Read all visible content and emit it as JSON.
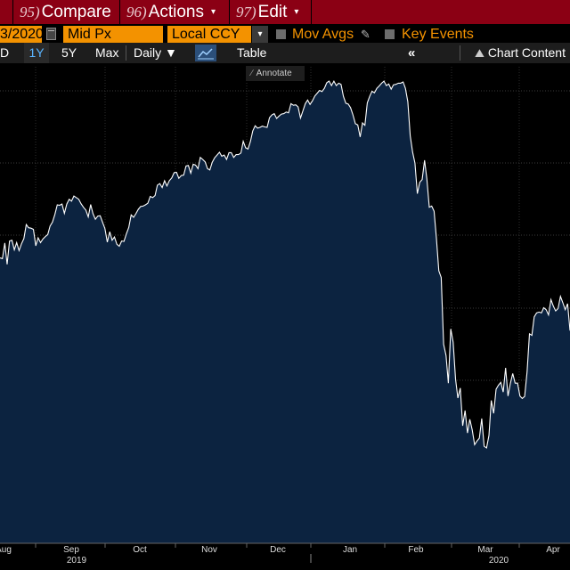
{
  "menu": {
    "compare": {
      "num": "95)",
      "label": "Compare"
    },
    "actions": {
      "num": "96)",
      "label": "Actions"
    },
    "edit": {
      "num": "97)",
      "label": "Edit"
    },
    "arrow": "▾"
  },
  "inputs": {
    "end_date": "3/2020",
    "price_field": "Mid Px",
    "currency": "Local CCY",
    "dropdown_arrow": "▾",
    "mov_avgs_label": "Mov Avgs",
    "key_events_label": "Key Events"
  },
  "toolbar": {
    "ytd": "D",
    "one_year": "1Y",
    "five_year": "5Y",
    "max": "Max",
    "frequency": "Daily ▼",
    "table": "Table",
    "collapse": "«",
    "chart_content": "Chart Content"
  },
  "annotate_label": "Annotate",
  "colors": {
    "menu_bar": "#8b0014",
    "field_orange": "#f39200",
    "area_fill": "#0c2340",
    "line": "#ffffff",
    "selected_tab": "#5ab4ff"
  },
  "chart_data": {
    "type": "area",
    "title": "",
    "xlabel": "",
    "ylabel": "",
    "x_tick_labels": [
      "Aug",
      "Sep",
      "Oct",
      "Nov",
      "Dec",
      "Jan",
      "Feb",
      "Mar",
      "Apr"
    ],
    "year_labels": [
      "2019",
      "2020"
    ],
    "y_gridlines": 7,
    "series": [
      {
        "values": [
          61.3,
          61.1,
          65,
          59.7,
          65.5,
          65.7,
          63.3,
          65.1,
          63.1,
          64.8,
          66.1,
          69.6,
          68.8,
          68.7,
          68.4,
          64.3,
          66.3,
          65.1,
          66,
          66.6,
          67.1,
          69.2,
          70.2,
          72.1,
          74.5,
          74.4,
          74.7,
          72.4,
          74.7,
          75.9,
          75.4,
          76.7,
          76.3,
          75.9,
          74.8,
          73.9,
          73.2,
          71.5,
          74.6,
          72.3,
          70.9,
          71.7,
          71.8,
          70.2,
          68.6,
          65.2,
          67.8,
          65.7,
          66.5,
          64.7,
          64.2,
          65.5,
          65.4,
          67.3,
          68.9,
          72,
          71.4,
          72.3,
          73.4,
          74.1,
          74.2,
          74.5,
          74.9,
          76.6,
          76.3,
          76.8,
          79.4,
          79.8,
          78.8,
          80.5,
          79.2,
          80.5,
          81.2,
          82.5,
          82.6,
          81.1,
          81.8,
          81.9,
          84.2,
          84.3,
          82.4,
          84.6,
          84.4,
          83.5,
          86.3,
          85.8,
          85.2,
          83.5,
          83.2,
          85.1,
          86.2,
          86.9,
          87.6,
          86.6,
          86.9,
          85.8,
          87.5,
          87.5,
          86.3,
          87,
          87,
          87.4,
          90.3,
          88.7,
          88.4,
          90.3,
          92.9,
          94.2,
          93.6,
          93.8,
          94.1,
          93.9,
          93.8,
          96.2,
          96.9,
          97.2,
          96,
          96.6,
          97.1,
          97.2,
          97.6,
          97.4,
          99.7,
          99.3,
          99.4,
          98.9,
          96.1,
          97.9,
          99.7,
          100.6,
          99.5,
          100.4,
          101.6,
          102.3,
          103,
          102.7,
          103.5,
          104.9,
          105.3,
          104.2,
          105.3,
          104.2,
          104.8,
          104.5,
          101.5,
          99.8,
          99.6,
          98.7,
          96.9,
          94.7,
          94.4,
          91.4,
          94.9,
          94.3,
          99.9,
          101.5,
          102.8,
          102.4,
          103.5,
          104.1,
          104.8,
          105.3,
          104.2,
          104.6,
          103.3,
          104.4,
          104.5,
          104.8,
          104.8,
          105.1,
          103.5,
          100.2,
          91.7,
          87.6,
          84.9,
          77.3,
          80.1,
          80.8,
          85.6,
          80.9,
          73.9,
          74.2,
          72.9,
          66.2,
          58.1,
          56.4,
          39.8,
          37,
          30.1,
          43.6,
          40.3,
          31.1,
          26.4,
          28.9,
          19.5,
          23.3,
          17.7,
          21.1,
          18.5,
          14.8,
          15.7,
          16.4,
          21.3,
          14.4,
          14,
          17.1,
          25.8,
          22.6,
          28.6,
          29.6,
          30.3,
          27.9,
          33.9,
          26.9,
          30.1,
          32.5,
          30.1,
          30.1,
          26.9,
          26.3,
          26.8,
          32.9,
          42.4,
          42,
          46.6,
          47.6,
          47.8,
          47.6,
          48.9,
          48.4,
          47.1,
          50.9,
          49.3,
          48.1,
          48.7,
          51.7,
          50.1,
          48.4,
          49.9,
          43.2
        ]
      }
    ]
  }
}
